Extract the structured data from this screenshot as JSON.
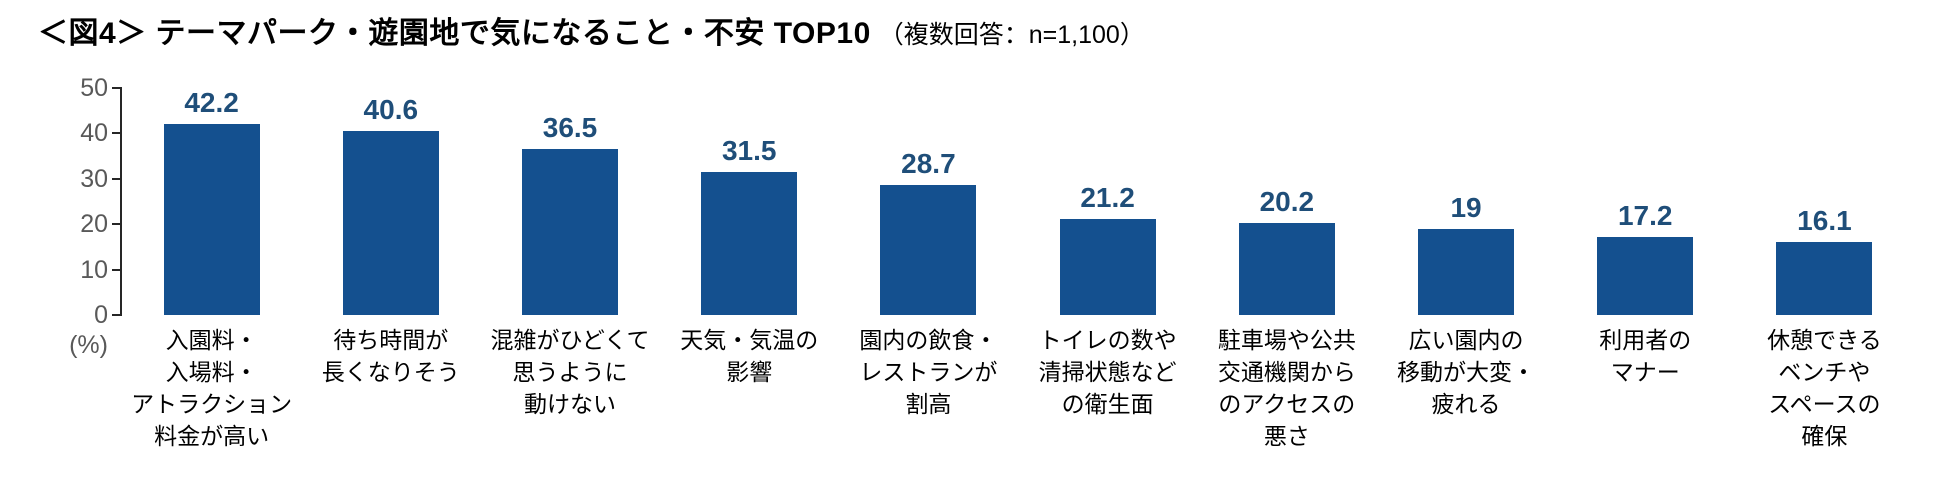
{
  "title": {
    "main": "＜図4＞ テーマパーク・遊園地で気になること・不安 TOP10",
    "note": "（複数回答：n=1,100）"
  },
  "y_axis": {
    "unit_label": "(%)",
    "ticks": [
      "50",
      "40",
      "30",
      "20",
      "10",
      "0"
    ]
  },
  "chart_data": {
    "type": "bar",
    "title": "＜図4＞ テーマパーク・遊園地で気になること・不安 TOP10",
    "subtitle": "（複数回答：n=1,100）",
    "ylabel": "(%)",
    "ylim": [
      0,
      50
    ],
    "yticks": [
      50,
      40,
      30,
      20,
      10,
      0
    ],
    "grid": "off",
    "legend": "none",
    "bar_color": "#14508F",
    "value_label_color": "#1F4E79",
    "tick_label_color": "#595959",
    "categories": [
      "入園料・\n入場料・\nアトラクション\n料金が高い",
      "待ち時間が\n長くなりそう",
      "混雑がひどくて\n思うように\n動けない",
      "天気・気温の\n影響",
      "園内の飲食・\nレストランが\n割高",
      "トイレの数や\n清掃状態など\nの衛生面",
      "駐車場や公共\n交通機関から\nのアクセスの\n悪さ",
      "広い園内の\n移動が大変・\n疲れる",
      "利用者の\nマナー",
      "休憩できる\nベンチや\nスペースの\n確保"
    ],
    "values": [
      42.2,
      40.6,
      36.5,
      31.5,
      28.7,
      21.2,
      20.2,
      19,
      17.2,
      16.1
    ],
    "value_labels": [
      "42.2",
      "40.6",
      "36.5",
      "31.5",
      "28.7",
      "21.2",
      "20.2",
      "19",
      "17.2",
      "16.1"
    ]
  }
}
